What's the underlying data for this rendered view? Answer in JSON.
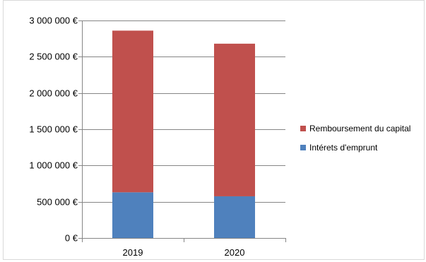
{
  "chart_data": {
    "type": "bar",
    "stacked": true,
    "categories": [
      "2019",
      "2020"
    ],
    "series": [
      {
        "name": "Intérets d'emprunt",
        "values": [
          630000,
          575000
        ],
        "color": "#4F81BD"
      },
      {
        "name": "Remboursement du capital",
        "values": [
          2230000,
          2105000
        ],
        "color": "#C0504D"
      }
    ],
    "title": "",
    "xlabel": "",
    "ylabel": "",
    "ylim": [
      0,
      3000000
    ],
    "yticks": [
      0,
      500000,
      1000000,
      1500000,
      2000000,
      2500000,
      3000000
    ],
    "ytick_labels": [
      "0 €",
      "500 000 €",
      "1 000 000 €",
      "1 500 000 €",
      "2 000 000 €",
      "2 500 000 €",
      "3 000 000 €"
    ],
    "grid": true,
    "legend_position": "right",
    "legend_order": [
      "Remboursement du capital",
      "Intérets d'emprunt"
    ]
  }
}
